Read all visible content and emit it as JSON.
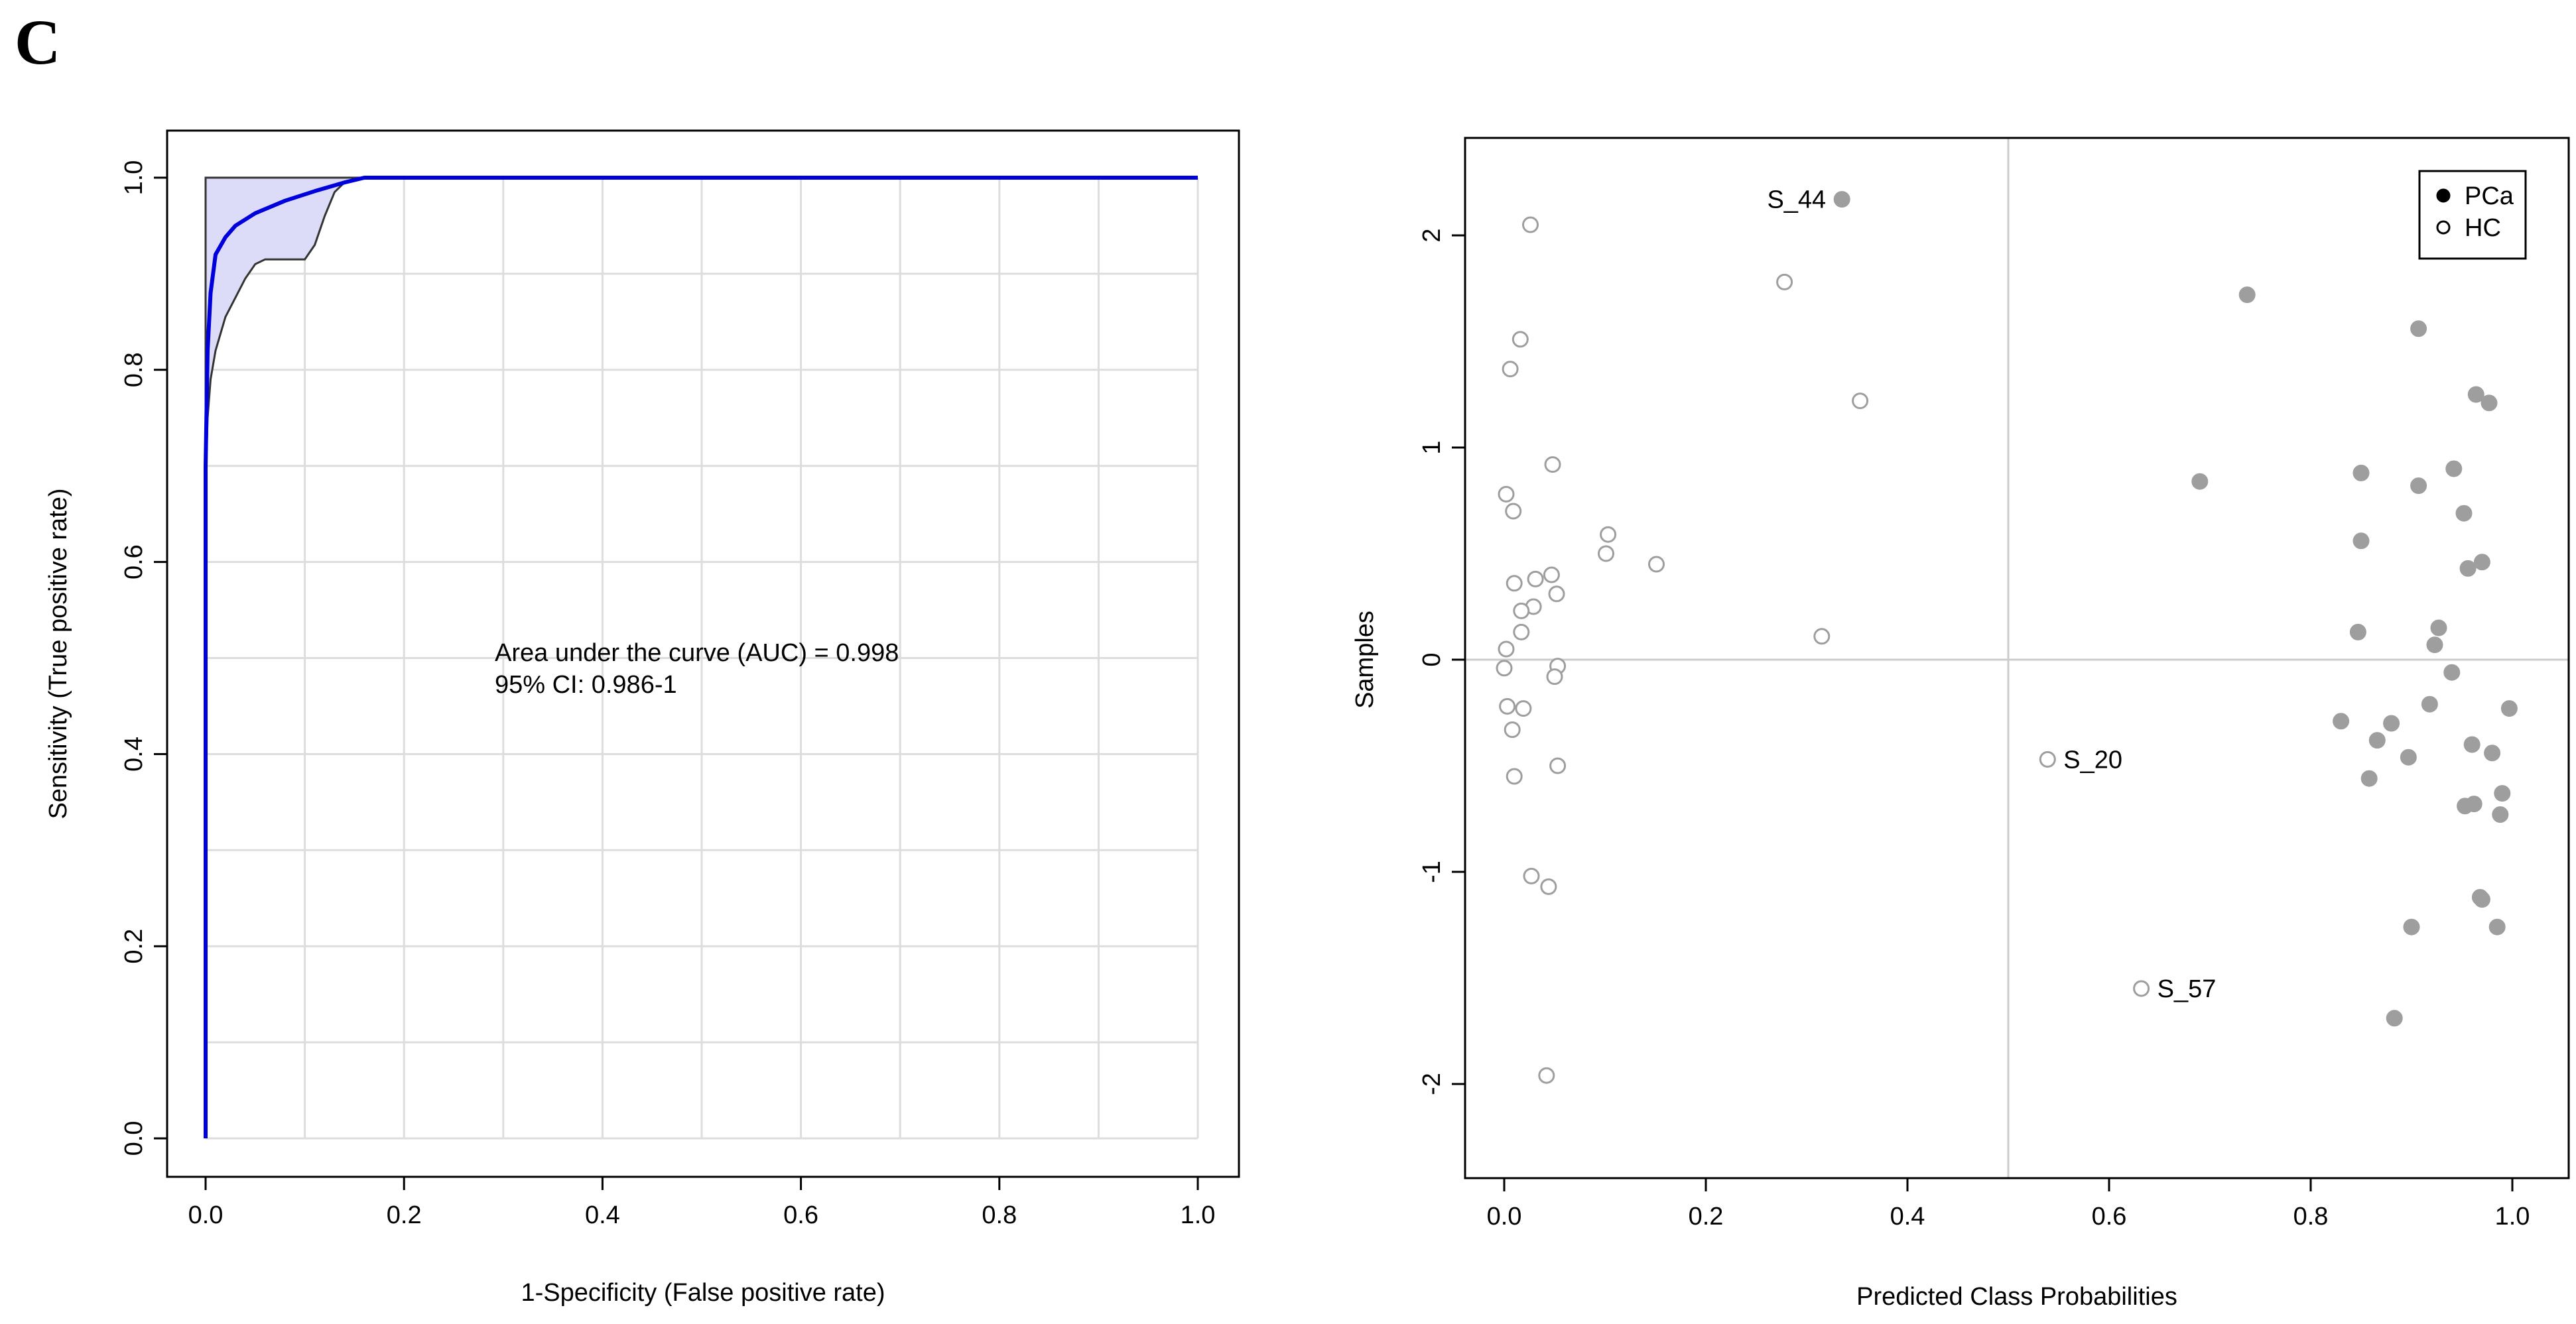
{
  "panel_label": "C",
  "chart_data": [
    {
      "type": "line",
      "xlabel": "1-Specificity (False positive rate)",
      "ylabel": "Sensitivity (True positive rate)",
      "xlim": [
        0,
        1
      ],
      "ylim": [
        0,
        1
      ],
      "xticks": [
        "0.0",
        "0.2",
        "0.4",
        "0.6",
        "0.8",
        "1.0"
      ],
      "yticks": [
        "0.0",
        "0.2",
        "0.4",
        "0.6",
        "0.8",
        "1.0"
      ],
      "grid": true,
      "annotation": {
        "auc_text": "Area under the curve (AUC) = 0.998",
        "ci_text": " 95% CI: 0.986-1"
      },
      "colors": {
        "curve": "#0000dd",
        "band_fill": "#dcdcf8",
        "band_edge": "#333333"
      },
      "roc_curve": {
        "x": [
          0,
          0,
          0.002,
          0.005,
          0.01,
          0.02,
          0.03,
          0.05,
          0.08,
          0.11,
          0.14,
          0.16,
          1.0
        ],
        "y": [
          0,
          0.7,
          0.82,
          0.88,
          0.92,
          0.938,
          0.95,
          0.963,
          0.976,
          0.986,
          0.995,
          1.0,
          1.0
        ]
      },
      "ci_upper": {
        "x": [
          0,
          0,
          0.16,
          1.0
        ],
        "y": [
          0,
          1.0,
          1.0,
          1.0
        ]
      },
      "ci_lower": {
        "x": [
          0,
          0,
          0.002,
          0.005,
          0.01,
          0.02,
          0.03,
          0.04,
          0.05,
          0.06,
          0.07,
          0.08,
          0.1,
          0.11,
          0.12,
          0.13,
          0.14,
          0.16,
          1.0
        ],
        "y": [
          0,
          0.68,
          0.75,
          0.79,
          0.82,
          0.855,
          0.875,
          0.895,
          0.91,
          0.915,
          0.915,
          0.915,
          0.915,
          0.93,
          0.96,
          0.985,
          0.995,
          1.0,
          1.0
        ]
      }
    },
    {
      "type": "scatter",
      "xlabel": "Predicted Class Probabilities",
      "ylabel": "Samples",
      "xlim": [
        -0.04,
        1.04
      ],
      "ylim": [
        -2.45,
        2.45
      ],
      "xticks": [
        "0.0",
        "0.2",
        "0.4",
        "0.6",
        "0.8",
        "1.0"
      ],
      "yticks": [
        "-2",
        "-1",
        "0",
        "1",
        "2"
      ],
      "ref_lines": {
        "x": 0.5,
        "y": 0
      },
      "legend": {
        "position": "top-right",
        "entries": [
          "PCa",
          "HC"
        ]
      },
      "colors": {
        "pca": "#9e9e9e",
        "hc_edge": "#9e9e9e",
        "ref_line": "#cccccc"
      },
      "series": [
        {
          "name": "PCa",
          "points": [
            [
              0.335,
              2.17
            ],
            [
              0.737,
              1.72
            ],
            [
              0.907,
              1.56
            ],
            [
              0.964,
              1.25
            ],
            [
              0.977,
              1.21
            ],
            [
              0.69,
              0.84
            ],
            [
              0.85,
              0.88
            ],
            [
              0.942,
              0.9
            ],
            [
              0.907,
              0.82
            ],
            [
              0.952,
              0.69
            ],
            [
              0.85,
              0.56
            ],
            [
              0.97,
              0.46
            ],
            [
              0.956,
              0.43
            ],
            [
              0.927,
              0.15
            ],
            [
              0.847,
              0.13
            ],
            [
              0.923,
              0.07
            ],
            [
              0.94,
              -0.06
            ],
            [
              0.997,
              -0.23
            ],
            [
              0.918,
              -0.21
            ],
            [
              0.83,
              -0.29
            ],
            [
              0.88,
              -0.3
            ],
            [
              0.866,
              -0.38
            ],
            [
              0.96,
              -0.4
            ],
            [
              0.897,
              -0.46
            ],
            [
              0.98,
              -0.44
            ],
            [
              0.858,
              -0.56
            ],
            [
              0.99,
              -0.63
            ],
            [
              0.962,
              -0.68
            ],
            [
              0.953,
              -0.69
            ],
            [
              0.988,
              -0.73
            ],
            [
              0.968,
              -1.12
            ],
            [
              0.97,
              -1.13
            ],
            [
              0.9,
              -1.26
            ],
            [
              0.985,
              -1.26
            ],
            [
              0.883,
              -1.69
            ]
          ]
        },
        {
          "name": "HC",
          "points": [
            [
              0.026,
              2.05
            ],
            [
              0.278,
              1.78
            ],
            [
              0.016,
              1.51
            ],
            [
              0.006,
              1.37
            ],
            [
              0.353,
              1.22
            ],
            [
              0.048,
              0.92
            ],
            [
              0.002,
              0.78
            ],
            [
              0.009,
              0.7
            ],
            [
              0.103,
              0.59
            ],
            [
              0.101,
              0.5
            ],
            [
              0.151,
              0.45
            ],
            [
              0.047,
              0.4
            ],
            [
              0.031,
              0.38
            ],
            [
              0.01,
              0.36
            ],
            [
              0.052,
              0.31
            ],
            [
              0.029,
              0.25
            ],
            [
              0.017,
              0.23
            ],
            [
              0.017,
              0.13
            ],
            [
              0.315,
              0.11
            ],
            [
              0.002,
              0.05
            ],
            [
              0.053,
              -0.03
            ],
            [
              0.0,
              -0.04
            ],
            [
              0.05,
              -0.08
            ],
            [
              0.003,
              -0.22
            ],
            [
              0.019,
              -0.23
            ],
            [
              0.008,
              -0.33
            ],
            [
              0.053,
              -0.5
            ],
            [
              0.01,
              -0.55
            ],
            [
              0.027,
              -1.02
            ],
            [
              0.044,
              -1.07
            ],
            [
              0.042,
              -1.96
            ]
          ]
        }
      ],
      "labels": [
        {
          "text": "S_44",
          "x": 0.335,
          "y": 2.17,
          "side": "left"
        },
        {
          "text": "S_20",
          "x": 0.539,
          "y": -0.47,
          "side": "right"
        },
        {
          "text": "S_57",
          "x": 0.632,
          "y": -1.55,
          "side": "right"
        }
      ],
      "labelled_hc_points": [
        [
          0.539,
          -0.47
        ],
        [
          0.632,
          -1.55
        ]
      ]
    }
  ]
}
